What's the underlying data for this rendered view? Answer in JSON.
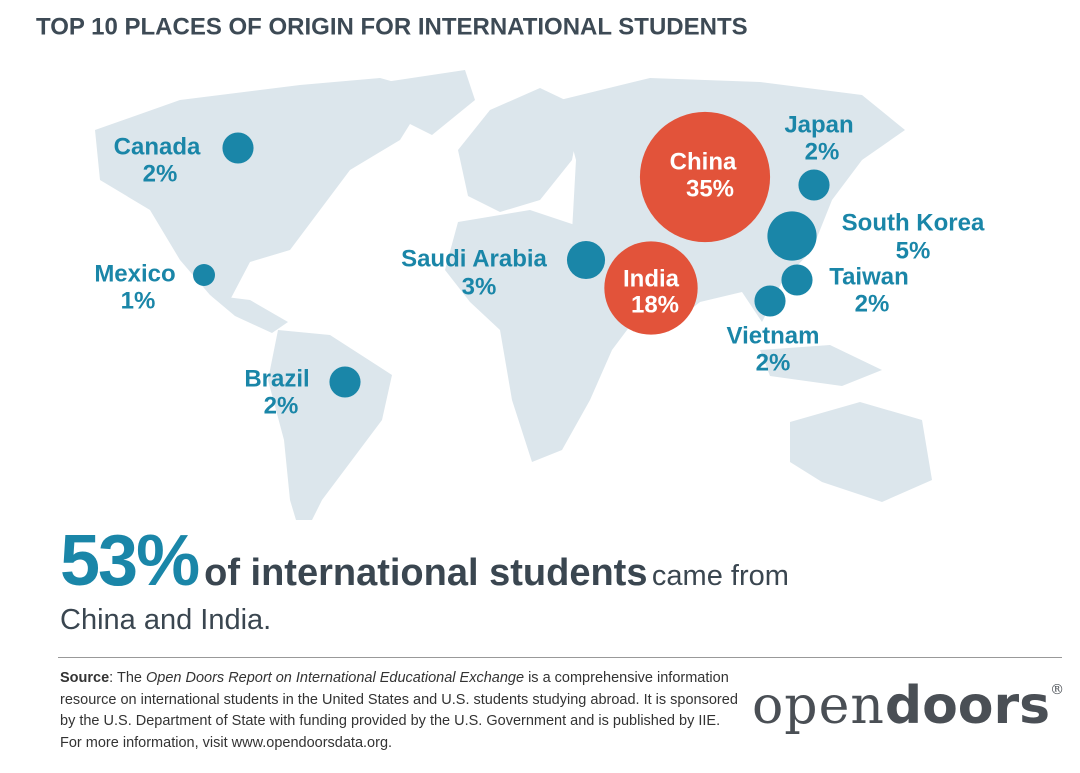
{
  "chart_data": {
    "type": "bubble-map",
    "title": "TOP 10 PLACES OF ORIGIN FOR INTERNATIONAL STUDENTS",
    "categories": [
      "Canada",
      "Mexico",
      "Brazil",
      "Saudi Arabia",
      "India",
      "China",
      "Japan",
      "South Korea",
      "Taiwan",
      "Vietnam"
    ],
    "values": [
      2,
      1,
      2,
      3,
      18,
      35,
      2,
      5,
      2,
      2
    ],
    "value_labels": [
      "2%",
      "1%",
      "2%",
      "3%",
      "18%",
      "35%",
      "2%",
      "5%",
      "2%",
      "2%"
    ],
    "colors": [
      "#1a86a8",
      "#1a86a8",
      "#1a86a8",
      "#1a86a8",
      "#e2533a",
      "#e2533a",
      "#1a86a8",
      "#1a86a8",
      "#1a86a8",
      "#1a86a8"
    ]
  },
  "headline": {
    "percent": "53%",
    "bold": "of international students",
    "rest": "came from",
    "line2": "China and India."
  },
  "source": {
    "label": "Source",
    "intro": ": The ",
    "report": "Open Doors Report on International Educational Exchange",
    "text": " is a comprehensive information resource on international students in the United States and U.S. students studying abroad. It is sponsored by the U.S. Department of State with funding provided by the U.S. Government and is published by IIE. For more information, visit www.opendoorsdata.org."
  },
  "logo": {
    "light": "open",
    "bold": "doors",
    "mark": "®"
  }
}
